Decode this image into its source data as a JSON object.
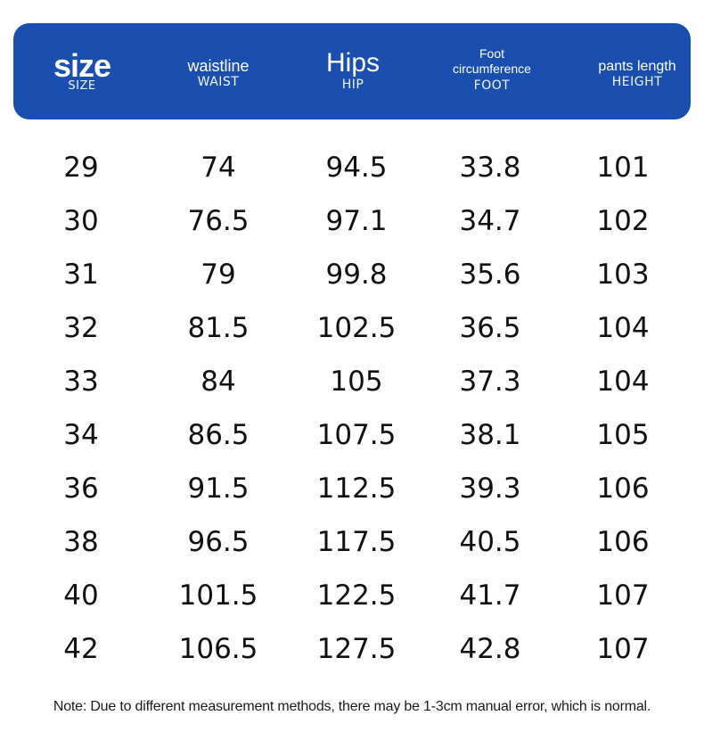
{
  "header": {
    "columns": [
      {
        "title": "size",
        "subtitle": "SIZE"
      },
      {
        "title": "waistline",
        "subtitle": "WAIST"
      },
      {
        "title": "Hips",
        "subtitle": "HIP"
      },
      {
        "title": "Foot circumference",
        "subtitle": "FOOT"
      },
      {
        "title": "pants length",
        "subtitle": "HEIGHT"
      }
    ],
    "background_color": "#1a4fb0"
  },
  "rows": [
    [
      "29",
      "74",
      "94.5",
      "33.8",
      "101"
    ],
    [
      "30",
      "76.5",
      "97.1",
      "34.7",
      "102"
    ],
    [
      "31",
      "79",
      "99.8",
      "35.6",
      "103"
    ],
    [
      "32",
      "81.5",
      "102.5",
      "36.5",
      "104"
    ],
    [
      "33",
      "84",
      "105",
      "37.3",
      "104"
    ],
    [
      "34",
      "86.5",
      "107.5",
      "38.1",
      "105"
    ],
    [
      "36",
      "91.5",
      "112.5",
      "39.3",
      "106"
    ],
    [
      "38",
      "96.5",
      "117.5",
      "40.5",
      "106"
    ],
    [
      "40",
      "101.5",
      "122.5",
      "41.7",
      "107"
    ],
    [
      "42",
      "106.5",
      "127.5",
      "42.8",
      "107"
    ]
  ],
  "note": "Note: Due to different measurement methods, there may be 1-3cm manual error, which is normal."
}
